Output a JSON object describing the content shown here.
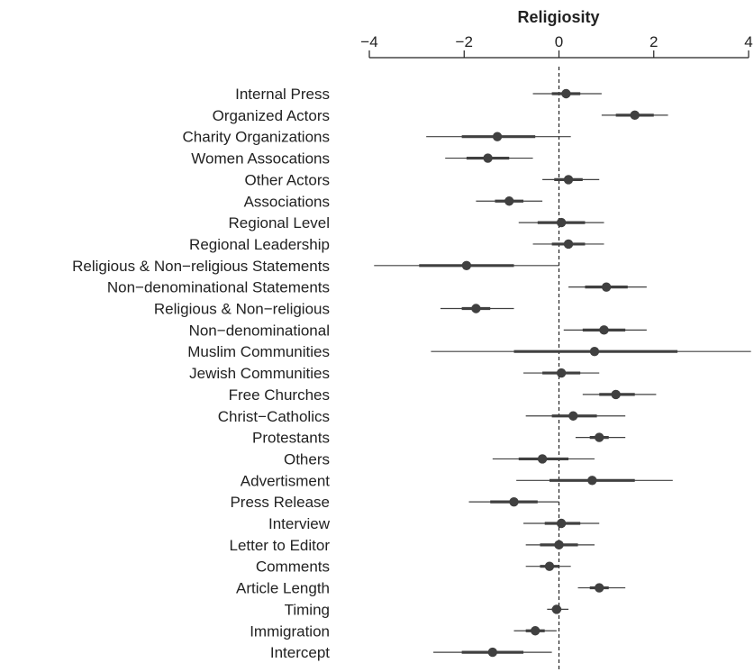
{
  "chart_data": {
    "type": "coefficient-plot",
    "title": "Religiosity",
    "xlim": [
      -4,
      4
    ],
    "x_ticks": [
      -4,
      -2,
      0,
      2,
      4
    ],
    "x_tick_labels": [
      "−4",
      "−2",
      "0",
      "2",
      "4"
    ],
    "x_axis_position": "top",
    "reference_line": 0,
    "categories": [
      "Internal Press",
      "Organized Actors",
      "Charity Organizations",
      "Women Assocations",
      "Other Actors",
      "Associations",
      "Regional Level",
      "Regional Leadership",
      "Religious & Non−religious Statements",
      "Non−denominational Statements",
      "Religious & Non−religious",
      "Non−denominational",
      "Muslim Communities",
      "Jewish Communities",
      "Free Churches",
      "Christ−Catholics",
      "Protestants",
      "Others",
      "Advertisment",
      "Press Release",
      "Interview",
      "Letter to Editor",
      "Comments",
      "Article Length",
      "Timing",
      "Immigration",
      "Intercept"
    ],
    "estimates": [
      0.15,
      1.6,
      -1.3,
      -1.5,
      0.2,
      -1.05,
      0.05,
      0.2,
      -1.95,
      1.0,
      -1.75,
      0.95,
      0.75,
      0.05,
      1.2,
      0.3,
      0.85,
      -0.35,
      0.7,
      -0.95,
      0.05,
      0.0,
      -0.2,
      0.85,
      -0.05,
      -0.5,
      -1.4
    ],
    "inner_lo": [
      -0.15,
      1.2,
      -2.05,
      -1.95,
      -0.1,
      -1.35,
      -0.45,
      -0.15,
      -2.95,
      0.55,
      -2.05,
      0.5,
      -0.95,
      -0.35,
      0.85,
      -0.15,
      0.65,
      -0.85,
      -0.2,
      -1.45,
      -0.3,
      -0.4,
      -0.4,
      0.65,
      -0.15,
      -0.7,
      -2.05
    ],
    "inner_hi": [
      0.45,
      2.0,
      -0.5,
      -1.05,
      0.5,
      -0.75,
      0.55,
      0.55,
      -0.95,
      1.45,
      -1.45,
      1.4,
      2.5,
      0.45,
      1.6,
      0.8,
      1.05,
      0.2,
      1.6,
      -0.45,
      0.45,
      0.4,
      0.0,
      1.05,
      0.05,
      -0.3,
      -0.75
    ],
    "outer_lo": [
      -0.55,
      0.9,
      -2.8,
      -2.4,
      -0.35,
      -1.75,
      -0.85,
      -0.55,
      -3.9,
      0.2,
      -2.5,
      0.1,
      -2.7,
      -0.75,
      0.5,
      -0.7,
      0.35,
      -1.4,
      -0.9,
      -1.9,
      -0.75,
      -0.7,
      -0.7,
      0.4,
      -0.25,
      -0.95,
      -2.65
    ],
    "outer_hi": [
      0.9,
      2.3,
      0.25,
      -0.55,
      0.85,
      -0.35,
      0.95,
      0.95,
      0.0,
      1.85,
      -0.95,
      1.85,
      4.3,
      0.85,
      2.05,
      1.4,
      1.4,
      0.75,
      2.4,
      0.0,
      0.85,
      0.75,
      0.25,
      1.4,
      0.2,
      -0.05,
      -0.15
    ],
    "grid": false,
    "legend": "none"
  },
  "colors": {
    "point": "#404040",
    "interval": "#404040",
    "axis": "#222222",
    "reference_line": "#222222"
  }
}
